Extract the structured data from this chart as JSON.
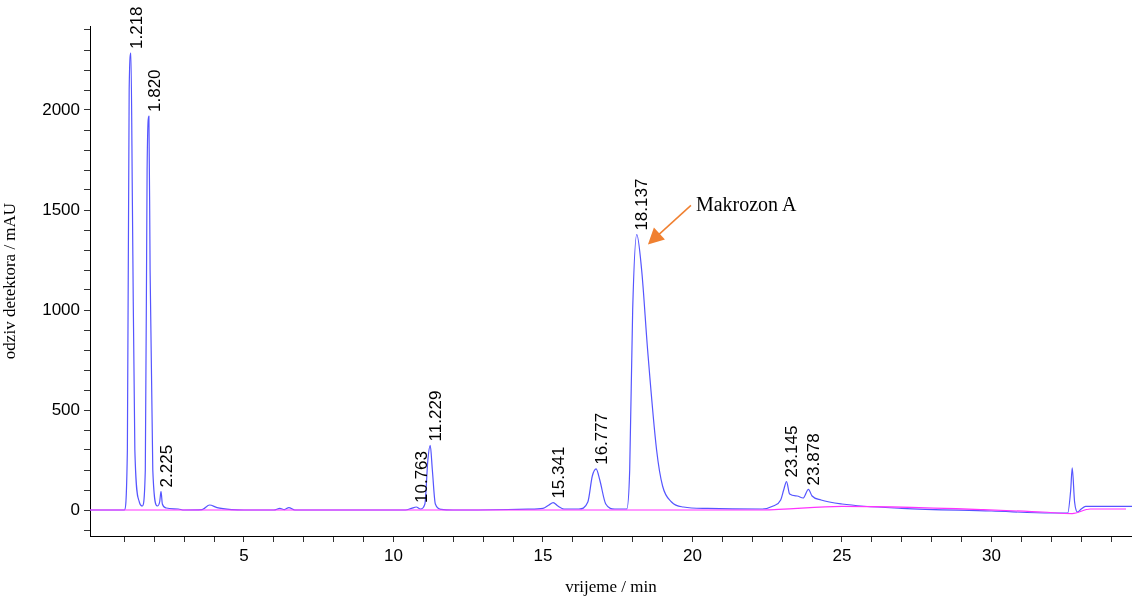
{
  "chart_data": {
    "type": "line",
    "xlabel": "vrijeme / min",
    "ylabel": "odziv detektora / mAU",
    "xlim": [
      -0.15,
      34.7
    ],
    "ylim": [
      -130,
      2420
    ],
    "xticks": [
      {
        "value": 1,
        "label": null
      },
      {
        "value": 2,
        "label": null
      },
      {
        "value": 3,
        "label": null
      },
      {
        "value": 4,
        "label": null
      },
      5,
      {
        "value": 6,
        "label": null
      },
      {
        "value": 7,
        "label": null
      },
      {
        "value": 8,
        "label": null
      },
      {
        "value": 9,
        "label": null
      },
      10,
      {
        "value": 11,
        "label": null
      },
      {
        "value": 12,
        "label": null
      },
      {
        "value": 13,
        "label": null
      },
      {
        "value": 14,
        "label": null
      },
      15,
      {
        "value": 16,
        "label": null
      },
      {
        "value": 17,
        "label": null
      },
      {
        "value": 18,
        "label": null
      },
      {
        "value": 19,
        "label": null
      },
      20,
      {
        "value": 21,
        "label": null
      },
      {
        "value": 22,
        "label": null
      },
      {
        "value": 23,
        "label": null
      },
      {
        "value": 24,
        "label": null
      },
      25,
      {
        "value": 26,
        "label": null
      },
      {
        "value": 27,
        "label": null
      },
      {
        "value": 28,
        "label": null
      },
      {
        "value": 29,
        "label": null
      },
      30,
      {
        "value": 31,
        "label": null
      },
      {
        "value": 32,
        "label": null
      },
      {
        "value": 33,
        "label": null
      },
      {
        "value": 34,
        "label": null
      }
    ],
    "yticks": [
      {
        "value": -100,
        "label": null
      },
      0,
      {
        "value": 100,
        "label": null
      },
      {
        "value": 200,
        "label": null
      },
      {
        "value": 300,
        "label": null
      },
      {
        "value": 400,
        "label": null
      },
      500,
      {
        "value": 600,
        "label": null
      },
      {
        "value": 700,
        "label": null
      },
      {
        "value": 800,
        "label": null
      },
      {
        "value": 900,
        "label": null
      },
      1000,
      {
        "value": 1100,
        "label": null
      },
      {
        "value": 1200,
        "label": null
      },
      {
        "value": 1300,
        "label": null
      },
      {
        "value": 1400,
        "label": null
      },
      1500,
      {
        "value": 1600,
        "label": null
      },
      {
        "value": 1700,
        "label": null
      },
      {
        "value": 1800,
        "label": null
      },
      {
        "value": 1900,
        "label": null
      },
      2000,
      {
        "value": 2100,
        "label": null
      },
      {
        "value": 2200,
        "label": null
      },
      {
        "value": 2300,
        "label": null
      },
      {
        "value": 2400,
        "label": null
      }
    ],
    "grid": false,
    "legend": false,
    "marker": "none",
    "line_style": "solid",
    "series": [
      {
        "color": "#ff33ff",
        "x": [
          -0.15,
          22.3,
          25,
          31.7,
          32.7,
          33.3,
          34.5
        ],
        "values": [
          0,
          0,
          18,
          -10,
          -18,
          5,
          5
        ]
      },
      {
        "color": "#5555ff",
        "x": [
          -0.15,
          1.0,
          1.1,
          1.16,
          1.218,
          1.27,
          1.35,
          1.5,
          1.6,
          1.7,
          1.76,
          1.82,
          1.86,
          1.95,
          2.1,
          2.18,
          2.225,
          2.27,
          2.4,
          2.8,
          3.0,
          3.6,
          3.85,
          4.1,
          4.6,
          5,
          6.0,
          6.2,
          6.35,
          6.5,
          6.7,
          7,
          10.4,
          10.6,
          10.763,
          10.9,
          11.05,
          11.15,
          11.229,
          11.3,
          11.4,
          11.6,
          12,
          14.5,
          15.0,
          15.2,
          15.341,
          15.5,
          15.7,
          16.2,
          16.5,
          16.65,
          16.777,
          16.9,
          17.1,
          17.4,
          17.8,
          17.9,
          18.0,
          18.137,
          18.3,
          18.5,
          18.8,
          19.0,
          19.3,
          19.7,
          20.5,
          22.3,
          22.7,
          22.95,
          23.05,
          23.145,
          23.25,
          23.5,
          23.7,
          23.878,
          24.0,
          24.3,
          25,
          27,
          30,
          32,
          32.55,
          32.65,
          32.7,
          32.78,
          32.88,
          33.0,
          33.15,
          34.7
        ],
        "values": [
          0,
          0,
          300,
          2100,
          2285,
          1500,
          300,
          40,
          20,
          200,
          1700,
          1970,
          1200,
          200,
          20,
          40,
          93,
          30,
          10,
          5,
          0,
          2,
          25,
          12,
          2,
          0,
          0,
          8,
          2,
          12,
          0,
          0,
          0,
          8,
          15,
          5,
          30,
          250,
          323,
          200,
          30,
          3,
          0,
          4,
          8,
          25,
          37,
          20,
          5,
          5,
          40,
          170,
          206,
          150,
          30,
          5,
          5,
          200,
          1000,
          1377,
          1200,
          800,
          300,
          120,
          40,
          15,
          8,
          5,
          20,
          50,
          100,
          142,
          80,
          70,
          60,
          103,
          70,
          50,
          30,
          8,
          -5,
          -15,
          -15,
          100,
          211,
          40,
          -10,
          5,
          18,
          18
        ]
      }
    ],
    "annotations": [
      {
        "text": "1.218",
        "x": 1.218,
        "y": 2285
      },
      {
        "text": "1.820",
        "x": 1.82,
        "y": 1970
      },
      {
        "text": "2.225",
        "x": 2.225,
        "y": 93
      },
      {
        "text": "10.763",
        "x": 10.763,
        "y": 15
      },
      {
        "text": "11.229",
        "x": 11.229,
        "y": 323
      },
      {
        "text": "15.341",
        "x": 15.341,
        "y": 37
      },
      {
        "text": "16.777",
        "x": 16.777,
        "y": 206
      },
      {
        "text": "18.137",
        "x": 18.137,
        "y": 1377
      },
      {
        "text": "23.145",
        "x": 23.145,
        "y": 142
      },
      {
        "text": "23.878",
        "x": 23.878,
        "y": 103
      },
      "Makrozon A"
    ]
  }
}
